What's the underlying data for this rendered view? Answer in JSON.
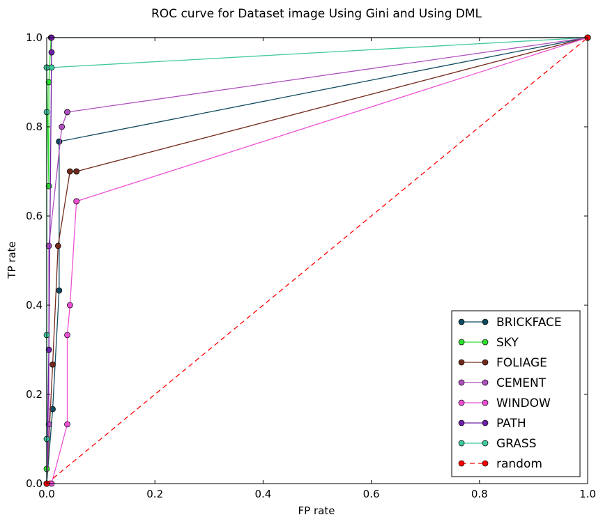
{
  "chart_data": {
    "type": "line",
    "title": "ROC curve for Dataset image Using Gini and Using DML",
    "xlabel": "FP rate",
    "ylabel": "TP rate",
    "xlim": [
      0,
      1
    ],
    "ylim": [
      0,
      1
    ],
    "xticks": [
      "0.0",
      "0.2",
      "0.4",
      "0.6",
      "0.8",
      "1.0"
    ],
    "yticks": [
      "0.0",
      "0.2",
      "0.4",
      "0.6",
      "0.8",
      "1.0"
    ],
    "grid": false,
    "legend_position": "bottom-right",
    "series": [
      {
        "name": "BRICKFACE",
        "color": "#0e4a5f",
        "dashed": false,
        "x": [
          0,
          0.011,
          0.023,
          0.023,
          0.023,
          1
        ],
        "y": [
          0,
          0.167,
          0.433,
          0.767,
          0.767,
          1
        ]
      },
      {
        "name": "SKY",
        "color": "#2ee02e",
        "dashed": false,
        "x": [
          0,
          0,
          0,
          0.004,
          0.004,
          0.008,
          1
        ],
        "y": [
          0,
          0.033,
          0.933,
          0.667,
          0.9,
          1,
          1
        ]
      },
      {
        "name": "FOLIAGE",
        "color": "#722a1c",
        "dashed": false,
        "x": [
          0,
          0.011,
          0.021,
          0.043,
          0.055,
          0.055,
          1
        ],
        "y": [
          0,
          0.267,
          0.533,
          0.7,
          0.7,
          0.7,
          1
        ]
      },
      {
        "name": "CEMENT",
        "color": "#b050c0",
        "dashed": false,
        "x": [
          0,
          0.004,
          0.004,
          0.028,
          0.038,
          0.038,
          1
        ],
        "y": [
          0,
          0.133,
          0.533,
          0.8,
          0.833,
          0.833,
          1
        ]
      },
      {
        "name": "WINDOW",
        "color": "#ee50d4",
        "dashed": false,
        "x": [
          0,
          0.009,
          0.038,
          0.038,
          0.043,
          0.055,
          0.055,
          1
        ],
        "y": [
          0,
          0,
          0.133,
          0.333,
          0.4,
          0.633,
          0.633,
          1
        ]
      },
      {
        "name": "PATH",
        "color": "#7020a8",
        "dashed": false,
        "x": [
          0,
          0.004,
          0.009,
          0.009,
          1
        ],
        "y": [
          0,
          0.3,
          0.967,
          1,
          1
        ]
      },
      {
        "name": "GRASS",
        "color": "#40c8a0",
        "dashed": false,
        "x": [
          0,
          0,
          0,
          0,
          0,
          0.009,
          1
        ],
        "y": [
          0,
          0.1,
          0.333,
          0.833,
          0.933,
          0.933,
          1
        ]
      },
      {
        "name": "random",
        "color": "#ff0000",
        "dashed": true,
        "x": [
          0,
          1
        ],
        "y": [
          0,
          1
        ]
      }
    ]
  }
}
